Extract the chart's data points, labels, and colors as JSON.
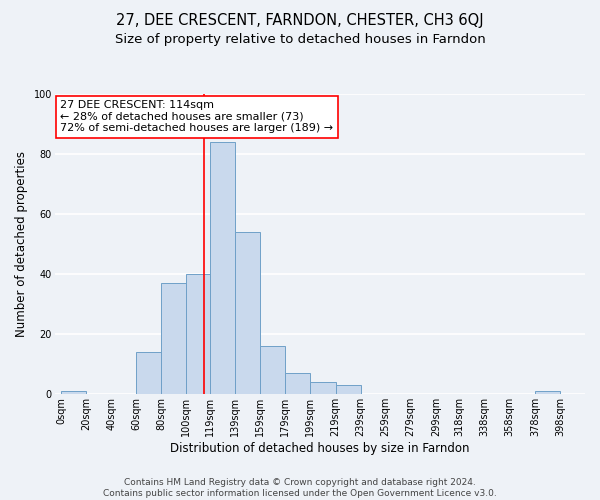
{
  "title": "27, DEE CRESCENT, FARNDON, CHESTER, CH3 6QJ",
  "subtitle": "Size of property relative to detached houses in Farndon",
  "xlabel": "Distribution of detached houses by size in Farndon",
  "ylabel": "Number of detached properties",
  "bar_edges": [
    0,
    20,
    40,
    60,
    80,
    100,
    119,
    139,
    159,
    179,
    199,
    219,
    239,
    259,
    279,
    299,
    318,
    338,
    358,
    378,
    398
  ],
  "bar_heights": [
    1,
    0,
    0,
    14,
    37,
    40,
    84,
    54,
    16,
    7,
    4,
    3,
    0,
    0,
    0,
    0,
    0,
    0,
    0,
    1
  ],
  "bar_color": "#c9d9ed",
  "bar_edge_color": "#6fa0c8",
  "vline_x": 114,
  "vline_color": "red",
  "ylim": [
    0,
    100
  ],
  "annotation_lines": [
    "27 DEE CRESCENT: 114sqm",
    "← 28% of detached houses are smaller (73)",
    "72% of semi-detached houses are larger (189) →"
  ],
  "annotation_box_color": "#ffffff",
  "annotation_box_edge_color": "red",
  "footer_line1": "Contains HM Land Registry data © Crown copyright and database right 2024.",
  "footer_line2": "Contains public sector information licensed under the Open Government Licence v3.0.",
  "tick_labels": [
    "0sqm",
    "20sqm",
    "40sqm",
    "60sqm",
    "80sqm",
    "100sqm",
    "119sqm",
    "139sqm",
    "159sqm",
    "179sqm",
    "199sqm",
    "219sqm",
    "239sqm",
    "259sqm",
    "279sqm",
    "299sqm",
    "318sqm",
    "338sqm",
    "358sqm",
    "378sqm",
    "398sqm"
  ],
  "background_color": "#eef2f7",
  "grid_color": "#ffffff",
  "title_fontsize": 10.5,
  "subtitle_fontsize": 9.5,
  "axis_label_fontsize": 8.5,
  "tick_fontsize": 7,
  "annotation_fontsize": 8,
  "footer_fontsize": 6.5
}
